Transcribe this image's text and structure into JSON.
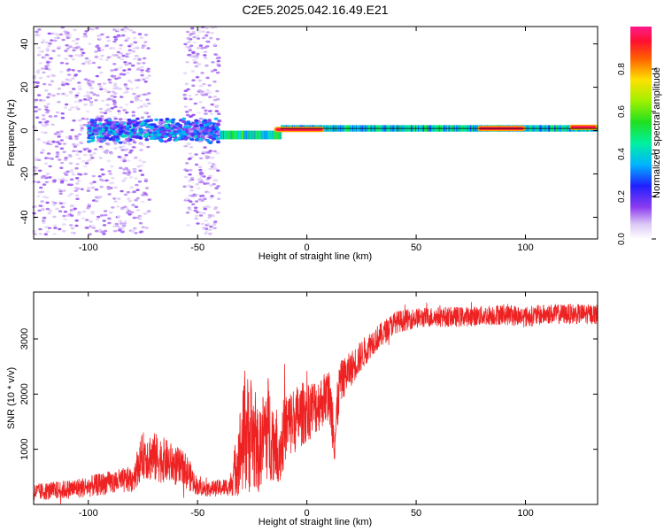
{
  "title": "C2E5.2025.042.16.49.E21",
  "colors": {
    "snr_line": "#ee2222",
    "frame": "#000000",
    "background": "#ffffff"
  },
  "chart_data": [
    {
      "type": "heatmap",
      "xlabel": "Height of straight line (km)",
      "ylabel": "Frequency (Hz)",
      "xlim": [
        -125,
        133
      ],
      "ylim": [
        -50,
        48
      ],
      "xticks": [
        -100,
        -50,
        0,
        50,
        100
      ],
      "yticks": [
        -40,
        -20,
        0,
        20,
        40
      ],
      "colorbar": {
        "label": "Normalized spectral amplitude",
        "range": [
          0,
          1
        ],
        "ticks": [
          0.0,
          0.2,
          0.4,
          0.6,
          0.8
        ],
        "tick_labels": [
          "0.0",
          "0.2",
          "0.4",
          "0.6",
          "0.8"
        ]
      },
      "features": [
        {
          "x_range": [
            -125,
            -72
          ],
          "freq_spread": 48,
          "amplitude": 0.12,
          "note": "noise speckle"
        },
        {
          "x_range": [
            -56,
            -40
          ],
          "freq_spread": 48,
          "amplitude": 0.12,
          "note": "noise speckle"
        },
        {
          "x_range": [
            -100,
            -40
          ],
          "freq_center": 0,
          "freq_spread": 6,
          "amplitude": 0.3
        },
        {
          "x_range": [
            -40,
            -12
          ],
          "freq_center": -2,
          "freq_spread": 2,
          "amplitude": 0.5
        },
        {
          "x_range": [
            -12,
            133
          ],
          "freq_center": 1,
          "freq_spread": 1.5,
          "amplitude": 0.45
        },
        {
          "x_range": [
            -15,
            8
          ],
          "freq_center": 0.5,
          "amplitude": 0.95
        },
        {
          "x_range": [
            78,
            100
          ],
          "freq_center": 1,
          "amplitude": 0.95
        },
        {
          "x_range": [
            120,
            133
          ],
          "freq_center": 1.5,
          "amplitude": 0.95
        }
      ]
    },
    {
      "type": "line",
      "xlabel": "Height of straight line (km)",
      "ylabel": "SNR (10 * v/v)",
      "xlim": [
        -125,
        133
      ],
      "ylim": [
        0,
        3850
      ],
      "xticks": [
        -100,
        -50,
        0,
        50,
        100
      ],
      "yticks": [
        1000,
        2000,
        3000
      ],
      "series": [
        {
          "x": [
            -125,
            -110,
            -100,
            -90,
            -80,
            -75,
            -70,
            -65,
            -60,
            -55,
            -50,
            -45,
            -40,
            -35,
            -30,
            -28,
            -25,
            -22,
            -20,
            -18,
            -15,
            -12,
            -10,
            -5,
            0,
            5,
            10,
            13,
            15,
            20,
            25,
            30,
            35,
            40,
            50,
            60,
            70,
            80,
            90,
            100,
            110,
            120,
            133
          ],
          "y": [
            220,
            270,
            320,
            400,
            450,
            900,
            850,
            800,
            700,
            600,
            320,
            280,
            300,
            330,
            1050,
            1300,
            1250,
            900,
            1250,
            1400,
            1150,
            1000,
            1400,
            1550,
            1700,
            1800,
            2000,
            1250,
            2200,
            2450,
            2700,
            2950,
            3100,
            3300,
            3380,
            3400,
            3400,
            3420,
            3450,
            3400,
            3450,
            3450,
            3450
          ],
          "amplitude": [
            150,
            170,
            190,
            210,
            240,
            420,
            460,
            400,
            360,
            330,
            150,
            140,
            150,
            170,
            900,
            1100,
            1050,
            700,
            800,
            1000,
            700,
            650,
            650,
            600,
            560,
            500,
            460,
            650,
            380,
            320,
            280,
            240,
            220,
            200,
            180,
            180,
            180,
            180,
            190,
            190,
            180,
            180,
            180
          ]
        }
      ]
    }
  ]
}
